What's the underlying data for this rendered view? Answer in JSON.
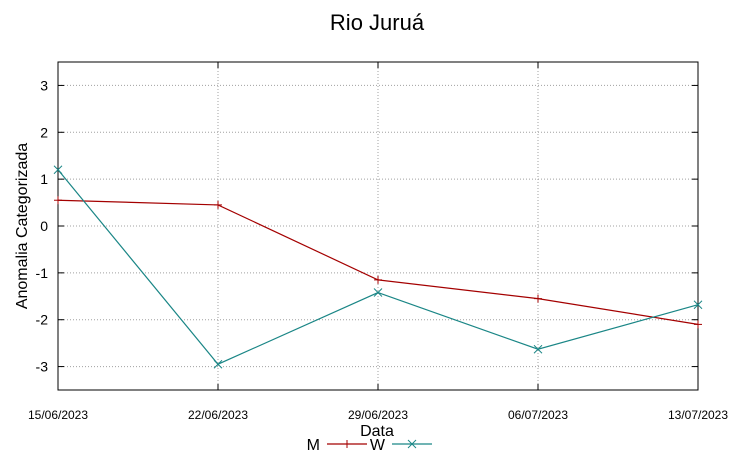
{
  "chart_data": {
    "type": "line",
    "title": "Rio Juruá",
    "xlabel": "Data",
    "ylabel": "Anomalia Categorizada",
    "categories": [
      "15/06/2023",
      "22/06/2023",
      "29/06/2023",
      "06/07/2023",
      "13/07/2023"
    ],
    "ylim": [
      -3.5,
      3.5
    ],
    "yticks": [
      "-3",
      "-2",
      "-1",
      "0",
      "1",
      "2",
      "3"
    ],
    "grid": true,
    "legend_position": "bottom-center",
    "series": [
      {
        "name": "M",
        "color": "#a40000",
        "marker": "plus",
        "values": [
          0.55,
          0.45,
          -1.15,
          -1.55,
          -2.1
        ]
      },
      {
        "name": "W",
        "color": "#1a8686",
        "marker": "cross",
        "values": [
          1.2,
          -2.95,
          -1.42,
          -2.63,
          -1.68
        ]
      }
    ]
  }
}
